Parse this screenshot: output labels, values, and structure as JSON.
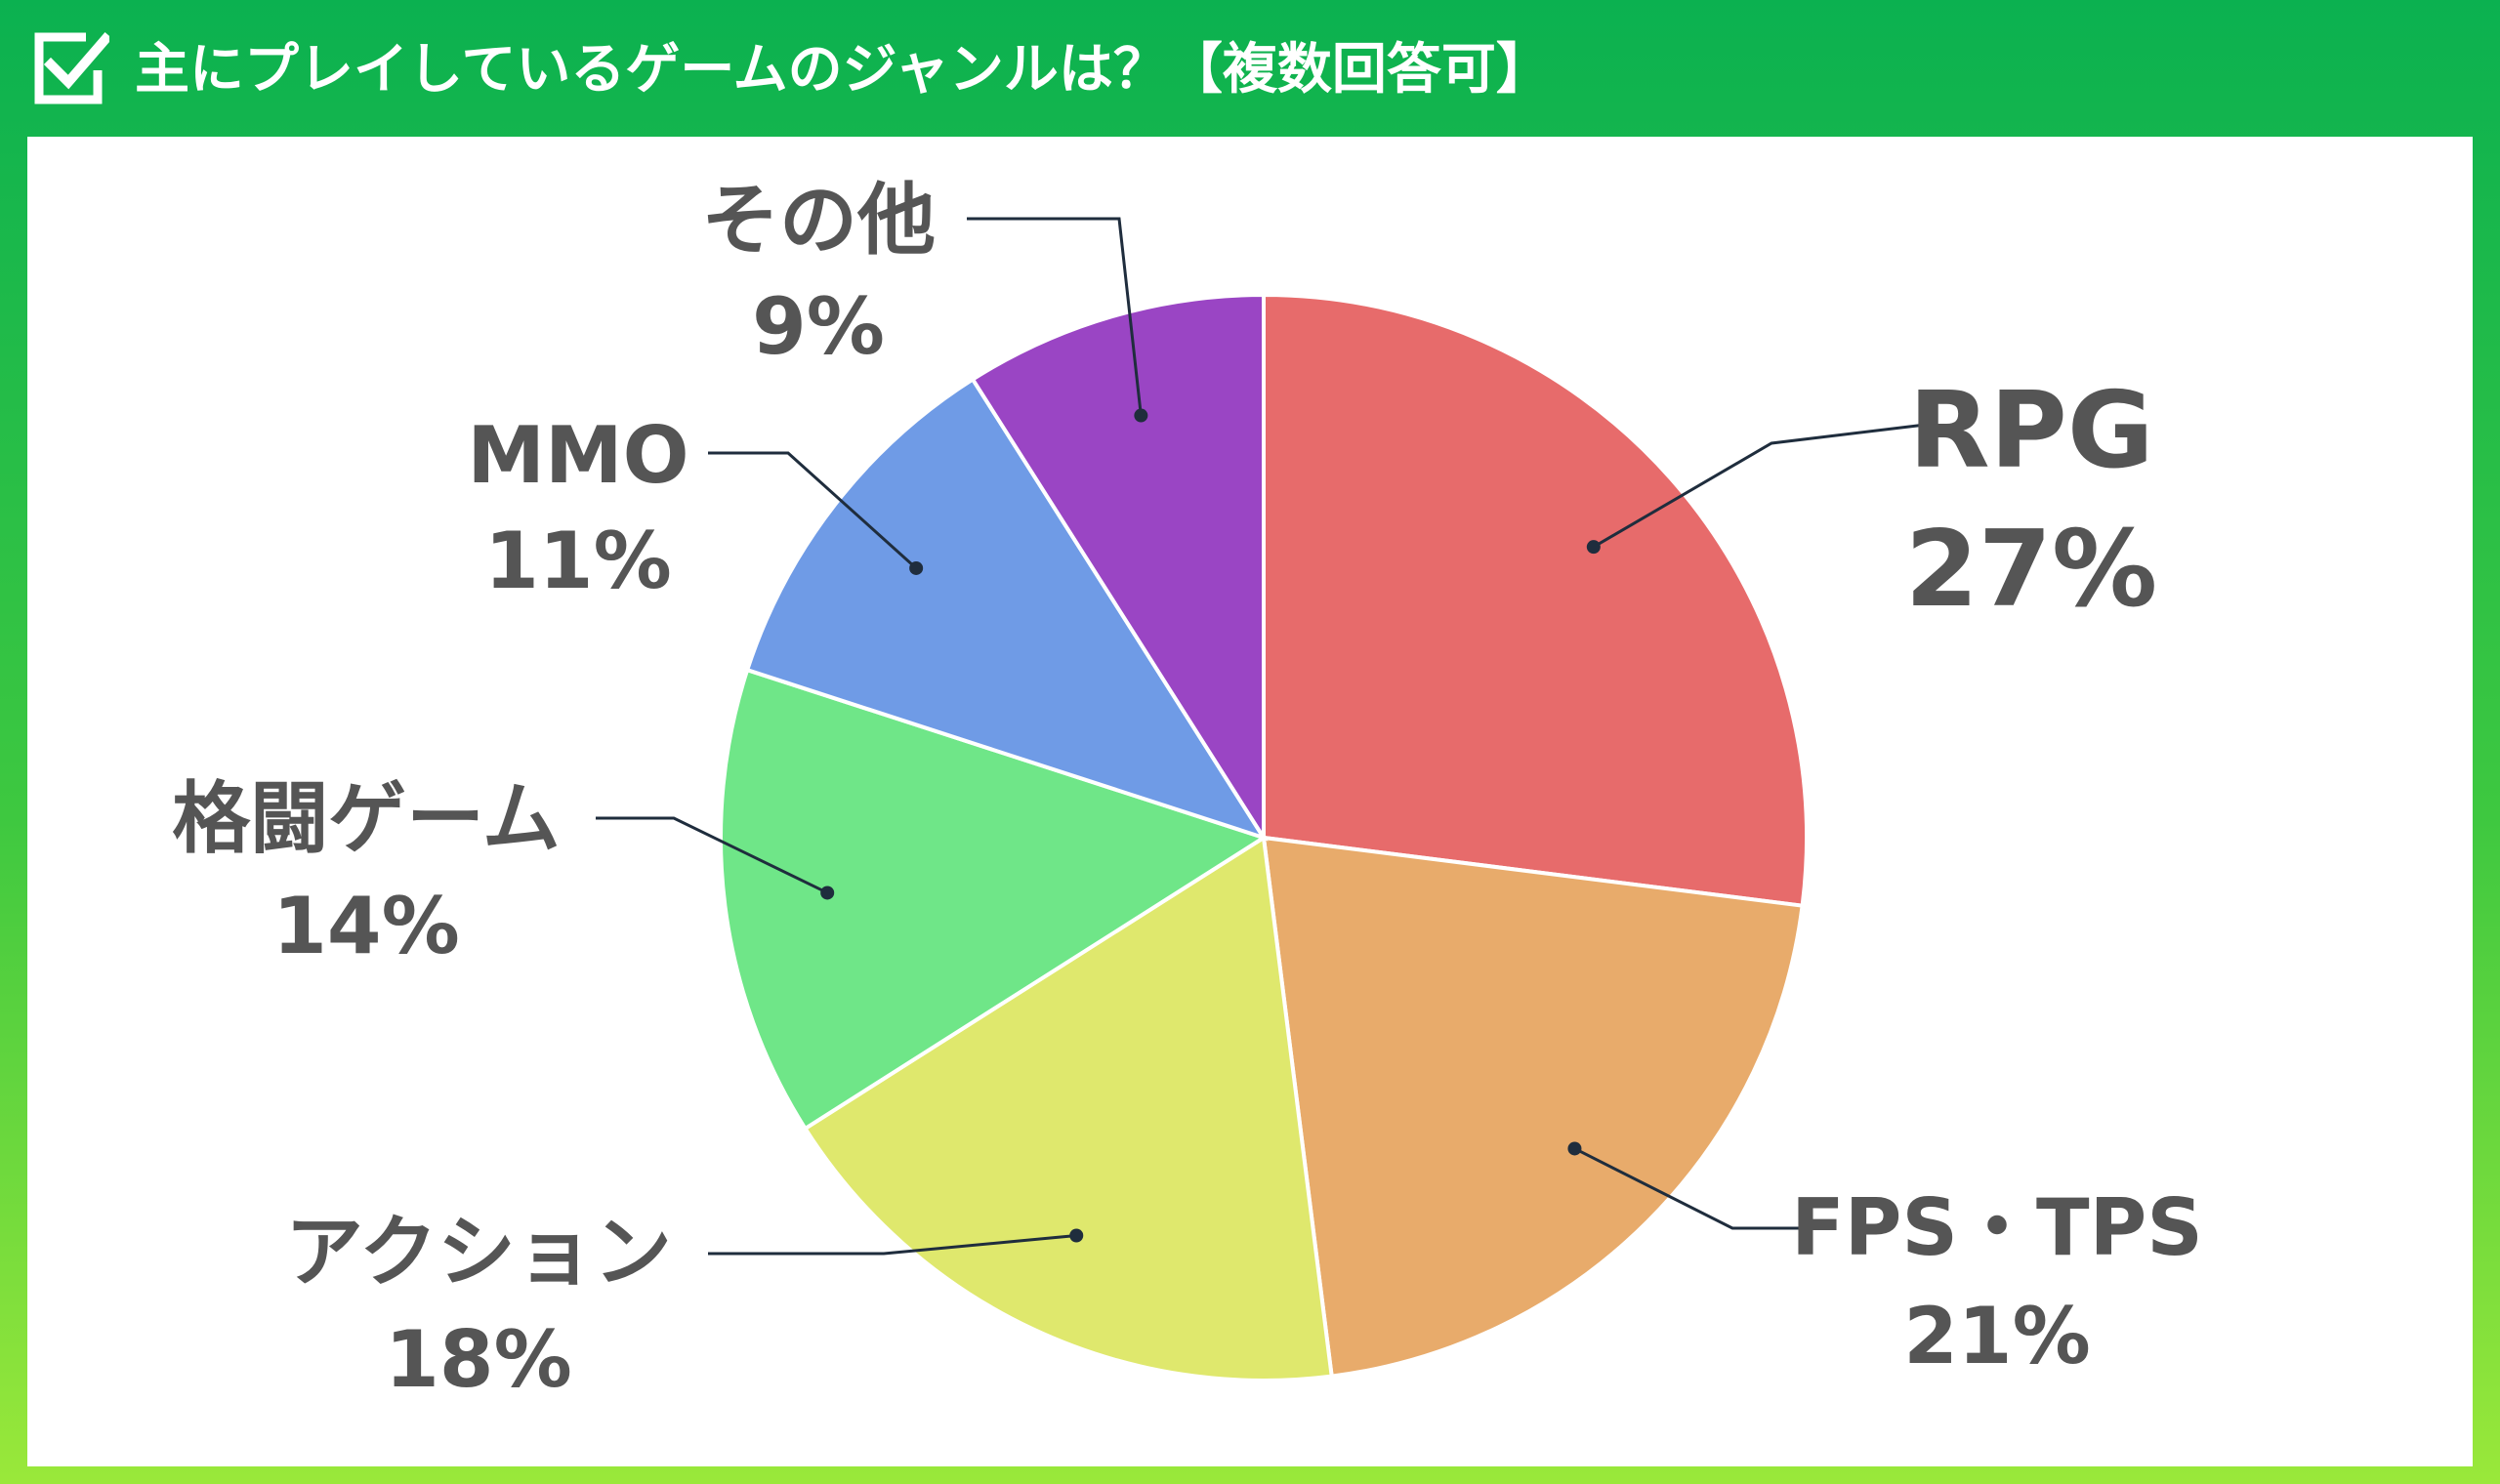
{
  "header": {
    "title": "主にプレイしているゲームのジャンルは？【複数回答可】",
    "icon": "checkbox-checked-icon"
  },
  "colors": {
    "frame_top": "#0bb150",
    "frame_bottom": "#9ae83a",
    "label_text": "#555555",
    "leader_line": "#1f2d3d"
  },
  "chart_data": {
    "type": "pie",
    "title": "主にプレイしているゲームのジャンルは？【複数回答可】",
    "start": "12 o'clock",
    "direction": "clockwise",
    "slices": [
      {
        "name": "RPG",
        "value": 27,
        "label": "27%",
        "color": "#e76b6b"
      },
      {
        "name": "FPS・TPS",
        "value": 21,
        "label": "21%",
        "color": "#e8ab6b"
      },
      {
        "name": "アクション",
        "value": 18,
        "label": "18%",
        "color": "#dfe86d"
      },
      {
        "name": "格闘ゲーム",
        "value": 14,
        "label": "14%",
        "color": "#6fe688"
      },
      {
        "name": "MMO",
        "value": 11,
        "label": "11%",
        "color": "#6f9be6"
      },
      {
        "name": "その他",
        "value": 9,
        "label": "9%",
        "color": "#9a45c4"
      }
    ]
  }
}
